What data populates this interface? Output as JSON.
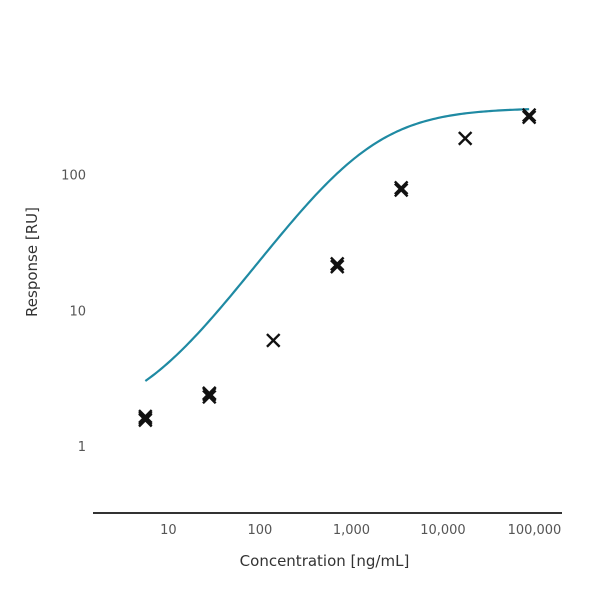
{
  "chart_data": {
    "type": "scatter",
    "title": "",
    "xlabel": "Concentration [ng/mL]",
    "ylabel": "Response [RU]",
    "xscale": "log",
    "yscale": "log",
    "xlim": [
      1.5,
      200000
    ],
    "ylim": [
      0.4,
      700
    ],
    "xticks": [
      10,
      100,
      1000,
      10000,
      100000
    ],
    "xtick_labels": [
      "10",
      "100",
      "1,000",
      "10,000",
      "100,000"
    ],
    "yticks": [
      1,
      10,
      100
    ],
    "ytick_labels": [
      "1",
      "10",
      "100"
    ],
    "grid": false,
    "legend": "none",
    "colors": {
      "fit_curve": "#1f8aa3",
      "markers": "#111111",
      "axis": "#333333",
      "tick_text": "#555555"
    },
    "series": [
      {
        "marker": "x",
        "x": [
          5.6,
          5.6,
          5.6,
          28,
          28,
          28,
          140,
          700,
          700,
          3500,
          3500,
          17500,
          87500,
          87500
        ],
        "y": [
          1.55,
          1.6,
          1.65,
          2.3,
          2.4,
          2.45,
          6,
          21,
          22,
          77,
          80,
          185,
          265,
          275
        ]
      }
    ],
    "fit": {
      "model": "4PL",
      "bottom": 1.5,
      "top": 310,
      "ec50": 1500,
      "hill": 0.95,
      "x_range": [
        5.6,
        87500
      ]
    }
  }
}
